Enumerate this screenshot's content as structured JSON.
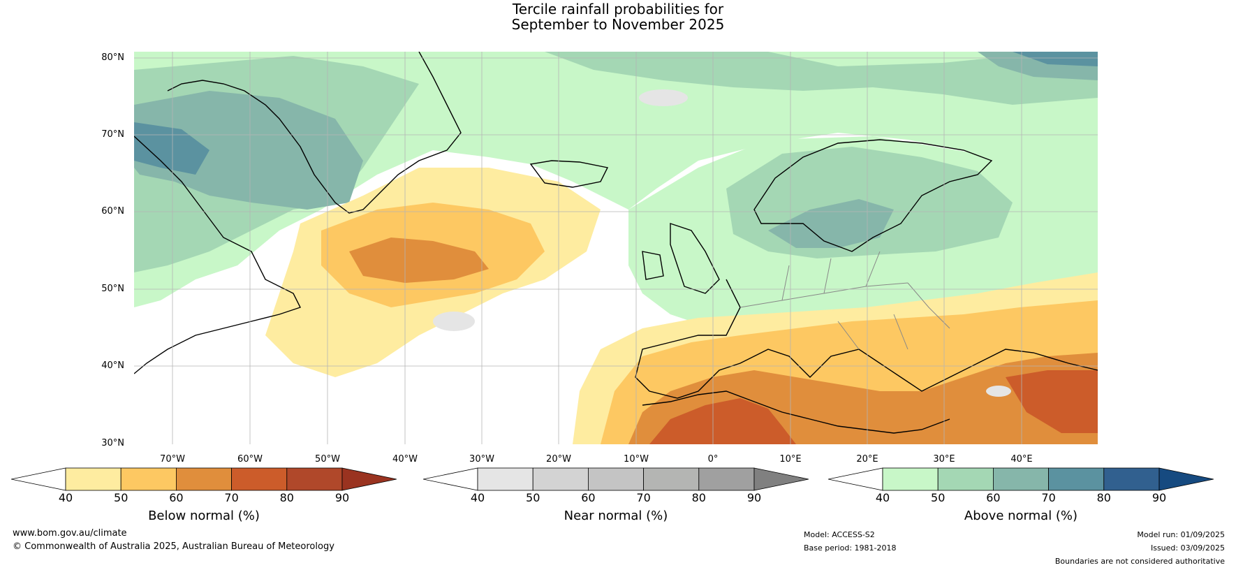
{
  "title": {
    "line1": "Tercile rainfall probabilities for",
    "line2": "September to November 2025"
  },
  "map": {
    "lat_labels": [
      "80°N",
      "70°N",
      "60°N",
      "50°N",
      "40°N",
      "30°N"
    ],
    "lon_labels": [
      "70°W",
      "60°W",
      "50°W",
      "40°W",
      "30°W",
      "20°W",
      "10°W",
      "0°",
      "10°E",
      "20°E",
      "30°E",
      "40°E"
    ],
    "colors": {
      "ocean_neutral": "#ffffff",
      "land_outline": "#000000",
      "border_outline": "#888888",
      "grid": "#b4b4b4"
    }
  },
  "colorbars": [
    {
      "name": "below",
      "title": "Below normal (%)",
      "ticks": [
        "40",
        "50",
        "60",
        "70",
        "80",
        "90"
      ],
      "colors": [
        "#ffffff",
        "#feeca0",
        "#fdc862",
        "#e08e3c",
        "#cc5c2a",
        "#b0482a",
        "#9a3320"
      ]
    },
    {
      "name": "near",
      "title": "Near normal (%)",
      "ticks": [
        "40",
        "50",
        "60",
        "70",
        "80",
        "90"
      ],
      "colors": [
        "#ffffff",
        "#e5e5e5",
        "#d3d3d3",
        "#c4c4c4",
        "#b4b5b3",
        "#a0a0a0",
        "#808080"
      ]
    },
    {
      "name": "above",
      "title": "Above normal (%)",
      "ticks": [
        "40",
        "50",
        "60",
        "70",
        "80",
        "90"
      ],
      "colors": [
        "#ffffff",
        "#c8f7c8",
        "#a4d7b4",
        "#86b6aa",
        "#5b92a0",
        "#31608f",
        "#164a80"
      ]
    }
  ],
  "footer": {
    "website": "www.bom.gov.au/climate",
    "copyright": "© Commonwealth of Australia 2025, Australian Bureau of Meteorology",
    "model": "Model: ACCESS-S2",
    "base_period": "Base period: 1981-2018",
    "model_run": "Model run: 01/09/2025",
    "issued": "Issued: 03/09/2025",
    "disclaimer": "Boundaries are not considered authoritative"
  }
}
